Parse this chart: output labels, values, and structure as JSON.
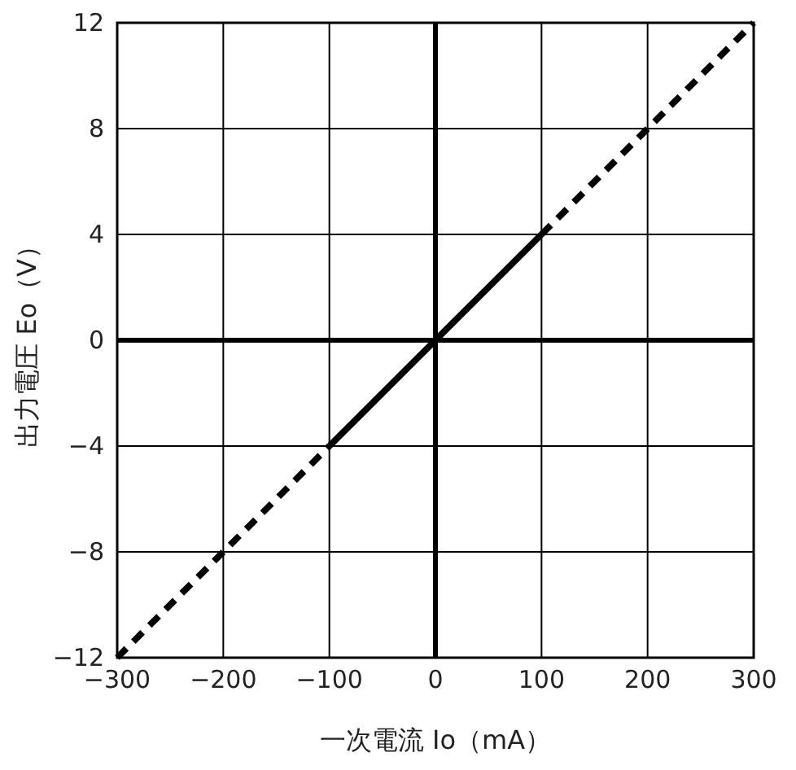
{
  "chart_data": {
    "type": "line",
    "xlabel": "一次電流 Io（mA）",
    "ylabel": "出力電圧 Eo（V）",
    "xlim": [
      -300,
      300
    ],
    "ylim": [
      -12,
      12
    ],
    "xticks": [
      {
        "value": -300,
        "label": "−300"
      },
      {
        "value": -200,
        "label": "−200"
      },
      {
        "value": -100,
        "label": "−100"
      },
      0,
      100,
      200,
      300
    ],
    "yticks": [
      {
        "value": -12,
        "label": "−12"
      },
      {
        "value": -8,
        "label": "−8"
      },
      {
        "value": -4,
        "label": "−4"
      },
      0,
      4,
      8,
      12
    ],
    "grid": true,
    "marker": "none",
    "series": [
      {
        "color": "#000000",
        "line_style": "dashed",
        "x": [
          -300,
          -100
        ],
        "values": [
          -12,
          -4
        ]
      },
      {
        "color": "#000000",
        "line_style": "solid",
        "x": [
          -100,
          100
        ],
        "values": [
          -4,
          4
        ]
      },
      {
        "color": "#000000",
        "line_style": "dashed",
        "x": [
          100,
          300
        ],
        "values": [
          4,
          12
        ]
      }
    ]
  }
}
